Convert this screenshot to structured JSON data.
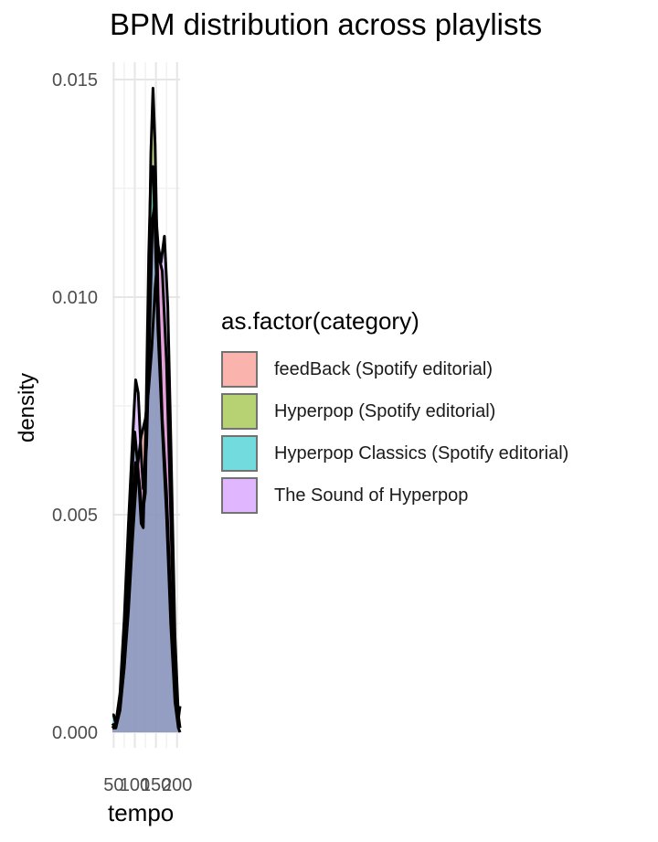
{
  "chart_data": {
    "type": "area",
    "title": "BPM distribution across playlists",
    "xlabel": "tempo",
    "ylabel": "density",
    "xlim": [
      47,
      207
    ],
    "ylim": [
      0,
      0.015
    ],
    "x_ticks": [
      50,
      100,
      150,
      200
    ],
    "x_tick_labels": [
      "50",
      "100",
      "150",
      "200"
    ],
    "y_ticks": [
      0,
      0.005,
      0.01,
      0.015
    ],
    "y_tick_labels": [
      "0.000",
      "0.005",
      "0.010",
      "0.015"
    ],
    "grid": true,
    "legend": {
      "title": "as.factor(category)",
      "placement": "right"
    },
    "series": [
      {
        "name": "feedBack (Spotify editorial)",
        "color": "#F8766D",
        "x": [
          47,
          55,
          65,
          75,
          85,
          95,
          105,
          115,
          125,
          132,
          140,
          148,
          155,
          165,
          175,
          185,
          195,
          203,
          207
        ],
        "y": [
          0.0002,
          0.0001,
          0.0006,
          0.0015,
          0.0028,
          0.0045,
          0.006,
          0.0068,
          0.0072,
          0.0078,
          0.0088,
          0.0102,
          0.011,
          0.0106,
          0.0085,
          0.005,
          0.0015,
          0.0003,
          0.0006
        ]
      },
      {
        "name": "Hyperpop (Spotify editorial)",
        "color": "#7CAE00",
        "x": [
          47,
          55,
          65,
          75,
          85,
          95,
          102,
          110,
          118,
          125,
          132,
          138,
          143,
          148,
          155,
          165,
          175,
          185,
          195,
          203,
          207
        ],
        "y": [
          0.0001,
          0.0001,
          0.0005,
          0.0015,
          0.0032,
          0.0052,
          0.0062,
          0.0058,
          0.005,
          0.0055,
          0.0095,
          0.0133,
          0.0148,
          0.0135,
          0.01,
          0.0072,
          0.0055,
          0.003,
          0.0008,
          0.0002,
          0.0001
        ]
      },
      {
        "name": "Hyperpop Classics (Spotify editorial)",
        "color": "#00BFC4",
        "x": [
          47,
          50,
          55,
          65,
          75,
          85,
          95,
          100,
          108,
          115,
          120,
          127,
          133,
          138,
          143,
          148,
          155,
          165,
          175,
          185,
          195,
          203,
          207
        ],
        "y": [
          0.0004,
          0.0004,
          0.0002,
          0.0008,
          0.0022,
          0.0042,
          0.0062,
          0.0069,
          0.006,
          0.0048,
          0.0047,
          0.0075,
          0.011,
          0.0128,
          0.013,
          0.0115,
          0.0092,
          0.007,
          0.005,
          0.0025,
          0.0007,
          0.0001,
          0
        ]
      },
      {
        "name": "The Sound of Hyperpop",
        "color": "#C77CFF",
        "x": [
          47,
          55,
          65,
          75,
          85,
          95,
          102,
          108,
          115,
          120,
          128,
          135,
          142,
          148,
          155,
          162,
          170,
          178,
          185,
          195,
          203,
          207
        ],
        "y": [
          0.0001,
          0.0002,
          0.0009,
          0.0026,
          0.0048,
          0.0068,
          0.0081,
          0.0078,
          0.0064,
          0.0056,
          0.0066,
          0.0092,
          0.0118,
          0.0122,
          0.0112,
          0.0108,
          0.0114,
          0.0098,
          0.0068,
          0.0022,
          0.0004,
          0.0001
        ]
      }
    ]
  }
}
